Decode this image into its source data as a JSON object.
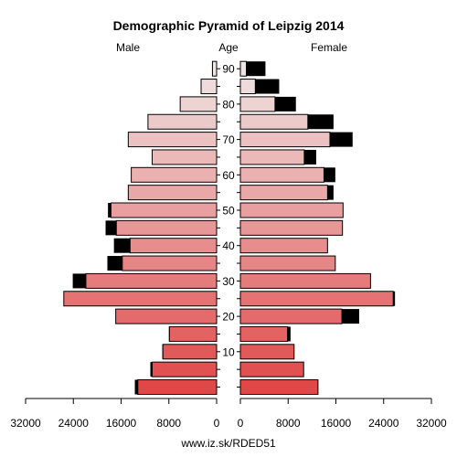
{
  "chart_data": {
    "type": "bar",
    "orientation": "horizontal-pyramid",
    "title": "Demographic Pyramid of Leipzig 2014",
    "left_label": "Male",
    "center_label": "Age",
    "right_label": "Female",
    "source": "www.iz.sk/RDED51",
    "xlim": [
      0,
      32000
    ],
    "x_ticks_left": [
      "32000",
      "24000",
      "16000",
      "8000",
      "0"
    ],
    "x_ticks_right": [
      "0",
      "8000",
      "16000",
      "24000",
      "32000"
    ],
    "age_ticks": [
      "10",
      "20",
      "30",
      "40",
      "50",
      "60",
      "70",
      "80",
      "90"
    ],
    "age_groups": [
      "0-4",
      "5-9",
      "10-14",
      "15-19",
      "20-24",
      "25-29",
      "30-34",
      "35-39",
      "40-44",
      "45-49",
      "50-54",
      "55-59",
      "60-64",
      "65-69",
      "70-74",
      "75-79",
      "80-84",
      "85-89",
      "90+"
    ],
    "series": [
      {
        "name": "Male",
        "values": [
          13200,
          10800,
          9000,
          7900,
          16900,
          25600,
          21900,
          15800,
          14500,
          16800,
          17700,
          14800,
          14300,
          10800,
          14800,
          11500,
          6100,
          2600,
          700
        ]
      },
      {
        "name": "Female",
        "values": [
          13000,
          10600,
          9000,
          7900,
          17000,
          25600,
          21800,
          15900,
          14600,
          17100,
          17200,
          14600,
          14000,
          10700,
          15000,
          11300,
          5800,
          2500,
          1000
        ]
      }
    ],
    "excess": {
      "male": [
        500,
        300,
        100,
        100,
        0,
        0,
        2200,
        2500,
        2700,
        1800,
        500,
        0,
        0,
        0,
        0,
        0,
        0,
        0,
        0
      ],
      "female": [
        0,
        0,
        0,
        500,
        2900,
        300,
        0,
        0,
        0,
        0,
        0,
        1000,
        1900,
        2000,
        3800,
        4300,
        3500,
        4000,
        3200
      ]
    },
    "colors": {
      "young": "#e04848",
      "old": "#f0e4e4",
      "excess": "#000000",
      "outline": "#000000"
    }
  }
}
